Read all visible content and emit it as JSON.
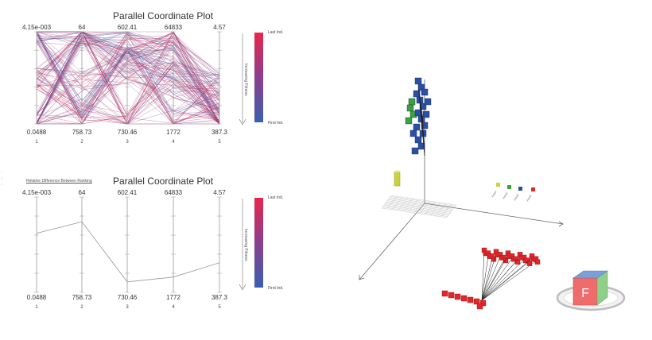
{
  "colors": {
    "line_start": "#3a5fb0",
    "line_end": "#e8274a",
    "axis": "#888888",
    "blue_block": "#2a4fa3",
    "green_block": "#3ca33a",
    "yellow_block": "#c9d43a",
    "red_block": "#e3262b",
    "cube_red": "#f06b6b",
    "cube_blue": "#7aa0d8",
    "cube_green": "#8fcf8a"
  },
  "top_plot": {
    "title": "Parallel Coordinate Plot",
    "axes": [
      {
        "index": "1",
        "max": "4.15e-003",
        "min": "0.0488"
      },
      {
        "index": "2",
        "max": "64",
        "min": "758.73"
      },
      {
        "index": "3",
        "max": "602.41",
        "min": "730.46"
      },
      {
        "index": "4",
        "max": "64833",
        "min": "1772"
      },
      {
        "index": "5",
        "max": "4.57",
        "min": "387.3"
      }
    ],
    "legend": {
      "top": "Last Ind.",
      "bottom": "First Ind.",
      "caption": "Increasing Fitness"
    }
  },
  "bottom_plot": {
    "title": "Parallel Coordinate Plot",
    "note": "Relative Difference Between Ranking",
    "axes": [
      {
        "index": "1",
        "max": "4.15e-003",
        "min": "0.0488"
      },
      {
        "index": "2",
        "max": "64",
        "min": "758.73"
      },
      {
        "index": "3",
        "max": "602.41",
        "min": "730.46"
      },
      {
        "index": "4",
        "max": "64833",
        "min": "1772"
      },
      {
        "index": "5",
        "max": "4.57",
        "min": "387.3"
      }
    ],
    "polyline_fraction": [
      0.62,
      0.74,
      0.11,
      0.16,
      0.31
    ],
    "legend": {
      "top": "Last Ind.",
      "bottom": "First Ind.",
      "caption": "Increasing Fitness"
    }
  },
  "scene": {
    "cube_label": "F",
    "icons": [
      "view-cube-icon",
      "floor-grid-icon"
    ]
  }
}
